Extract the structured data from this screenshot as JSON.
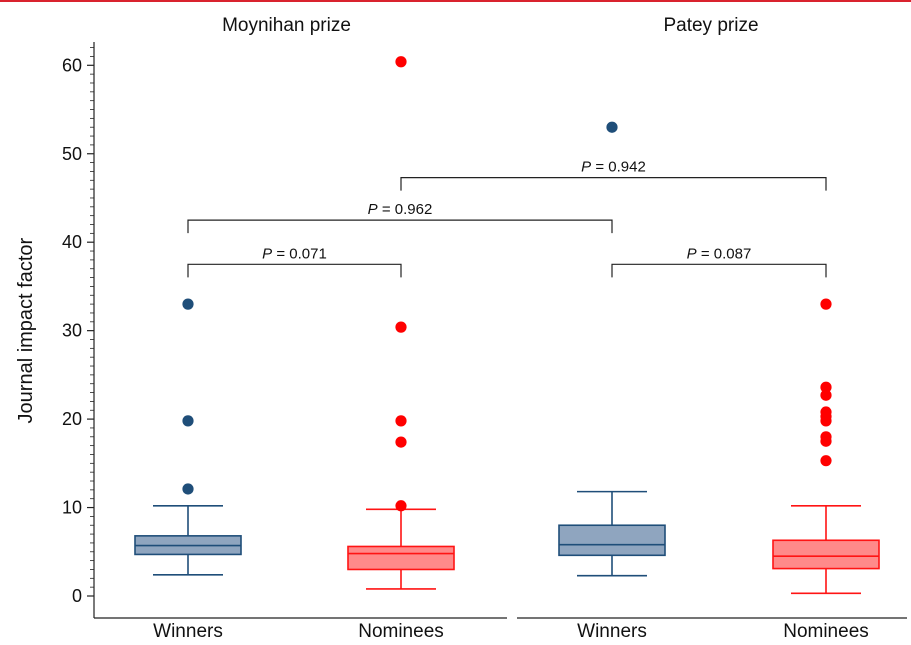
{
  "colors": {
    "winners_stroke": "#1f4e79",
    "winners_fill": "#8fa5bf",
    "nominees_stroke": "#ff1414",
    "nominees_fill": "#ff8a8a",
    "outlier_winners": "#1f4e79",
    "outlier_nominees": "#ff0000",
    "top_rule": "#d9232e"
  },
  "chart_data": {
    "type": "box",
    "ylabel": "Journal impact factor",
    "ylim": [
      0,
      62
    ],
    "yticks": [
      0,
      10,
      20,
      30,
      40,
      50,
      60
    ],
    "panels": [
      {
        "title": "Moynihan prize",
        "groups": [
          {
            "category": "Winners",
            "series": "winners",
            "whisker_low": 2.4,
            "q1": 4.7,
            "median": 5.7,
            "q3": 6.8,
            "whisker_high": 10.2,
            "outliers": [
              12.1,
              19.8,
              33.0
            ]
          },
          {
            "category": "Nominees",
            "series": "nominees",
            "whisker_low": 0.8,
            "q1": 3.0,
            "median": 4.8,
            "q3": 5.6,
            "whisker_high": 9.8,
            "outliers": [
              10.2,
              17.4,
              19.8,
              30.4,
              60.4
            ]
          }
        ]
      },
      {
        "title": "Patey prize",
        "groups": [
          {
            "category": "Winners",
            "series": "winners",
            "whisker_low": 2.3,
            "q1": 4.6,
            "median": 5.8,
            "q3": 8.0,
            "whisker_high": 11.8,
            "outliers": [
              53.0
            ]
          },
          {
            "category": "Nominees",
            "series": "nominees",
            "whisker_low": 0.3,
            "q1": 3.1,
            "median": 4.5,
            "q3": 6.3,
            "whisker_high": 10.2,
            "outliers": [
              15.3,
              17.5,
              18.0,
              19.8,
              20.3,
              20.8,
              22.7,
              23.6,
              33.0
            ]
          }
        ]
      }
    ],
    "comparisons": [
      {
        "from": 0,
        "to": 1,
        "y": 37.5,
        "p_label": "P",
        "p_value": "= 0.071"
      },
      {
        "from": 2,
        "to": 3,
        "y": 37.5,
        "p_label": "P",
        "p_value": "= 0.087"
      },
      {
        "from": 0,
        "to": 2,
        "y": 42.5,
        "p_label": "P",
        "p_value": "= 0.962"
      },
      {
        "from": 1,
        "to": 3,
        "y": 47.3,
        "p_label": "P",
        "p_value": "= 0.942"
      }
    ]
  }
}
